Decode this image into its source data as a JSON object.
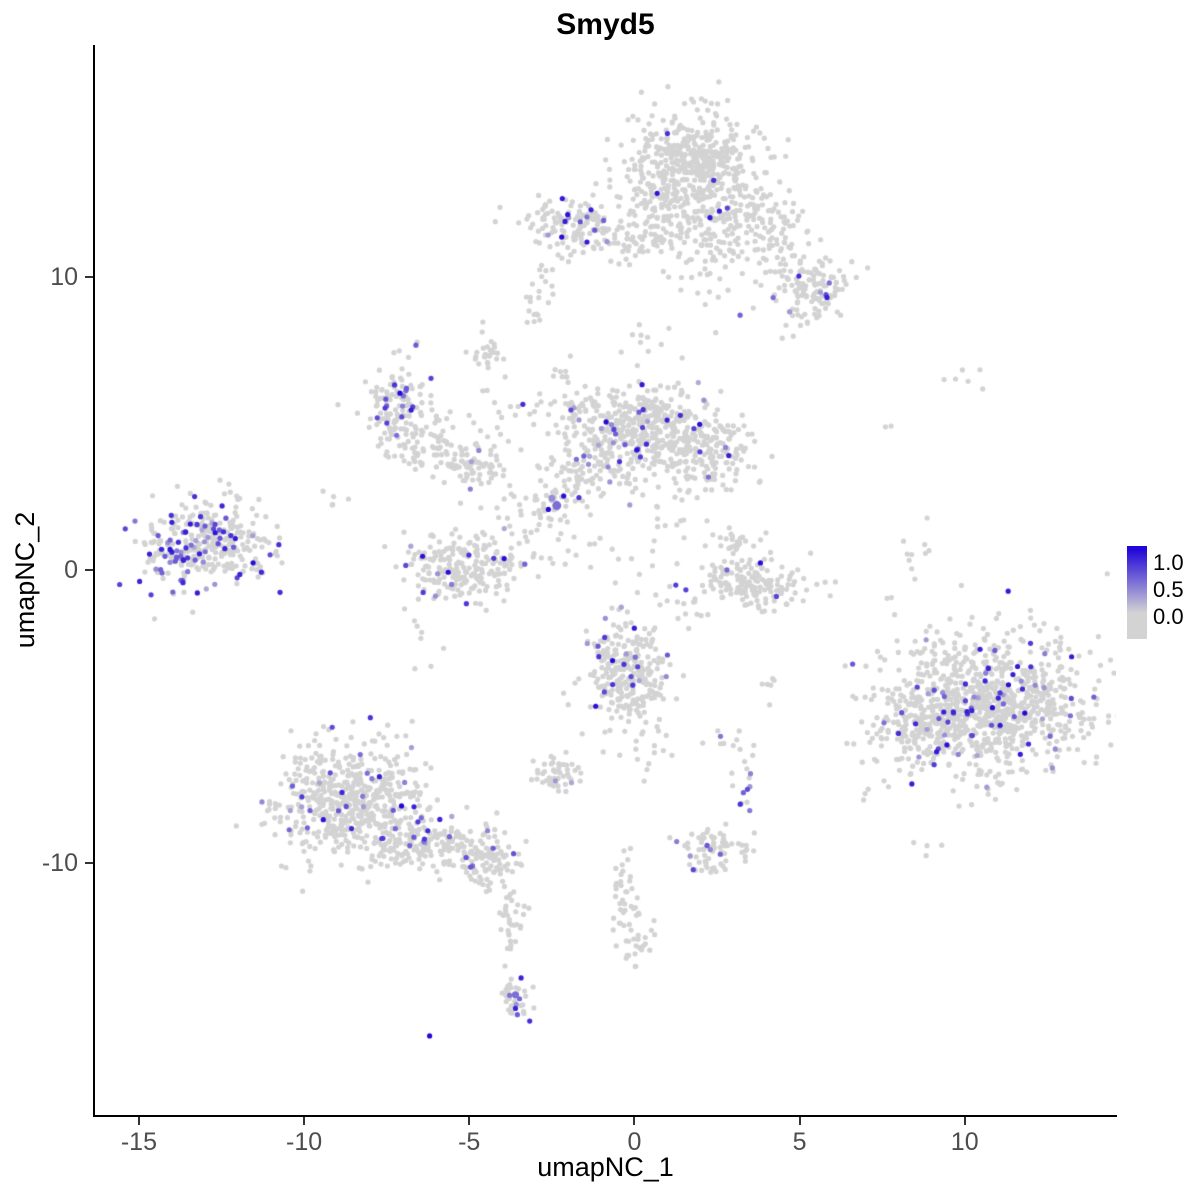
{
  "title": "Smyd5",
  "chart_data": {
    "type": "scatter",
    "title": "Smyd5",
    "xlabel": "umapNC_1",
    "ylabel": "umapNC_2",
    "x_ticks": [
      -15,
      -10,
      -5,
      0,
      5,
      10
    ],
    "y_ticks": [
      -10,
      0,
      10
    ],
    "x_range": [
      -16.33,
      14.58
    ],
    "y_range": [
      -18.6,
      17.92
    ],
    "grid": false,
    "legend": {
      "position": "right",
      "labels": [
        "1.0",
        "0.5",
        "0.0"
      ]
    },
    "colors": {
      "low": "#D3D3D3",
      "high": "#2208D8",
      "background": "#FFFFFF",
      "axis": "#000000"
    },
    "point_radius": 2.6,
    "seed": 42,
    "clusters": [
      {
        "x": 1.8,
        "y": 13.8,
        "sx": 1.0,
        "sy": 0.9,
        "n": 480,
        "expr_frac": 0.02
      },
      {
        "x": 3.4,
        "y": 11.9,
        "sx": 0.9,
        "sy": 0.7,
        "n": 150,
        "expr_frac": 0.02
      },
      {
        "x": 4.7,
        "y": 10.4,
        "sx": 0.7,
        "sy": 0.6,
        "n": 60,
        "expr_frac": 0.02
      },
      {
        "x": 5.6,
        "y": 9.6,
        "sx": 0.5,
        "sy": 0.45,
        "n": 80,
        "expr_frac": 0.05
      },
      {
        "x": 2.3,
        "y": 10.6,
        "sx": 0.5,
        "sy": 0.9,
        "n": 40,
        "expr_frac": 0.02
      },
      {
        "x": 1.0,
        "y": 12.0,
        "sx": 0.6,
        "sy": 0.8,
        "n": 80,
        "expr_frac": 0.02
      },
      {
        "x": -2.1,
        "y": 11.8,
        "sx": 0.75,
        "sy": 0.5,
        "n": 130,
        "expr_frac": 0.05
      },
      {
        "x": -0.4,
        "y": 11.4,
        "sx": 0.8,
        "sy": 0.45,
        "n": 50,
        "expr_frac": 0.02
      },
      {
        "x": 4.9,
        "y": 8.6,
        "sx": 0.3,
        "sy": 0.3,
        "n": 15,
        "expr_frac": 0.05
      },
      {
        "x": -2.9,
        "y": 8.9,
        "sx": 0.2,
        "sy": 0.3,
        "n": 12,
        "expr_frac": 0
      },
      {
        "x": -4.5,
        "y": 7.5,
        "sx": 0.3,
        "sy": 0.55,
        "n": 28,
        "expr_frac": 0
      },
      {
        "x": -7.1,
        "y": 5.5,
        "sx": 0.55,
        "sy": 0.8,
        "n": 140,
        "expr_frac": 0.13
      },
      {
        "x": -5.9,
        "y": 4.2,
        "sx": 0.6,
        "sy": 0.5,
        "n": 60,
        "expr_frac": 0.03
      },
      {
        "x": -4.8,
        "y": 3.6,
        "sx": 0.6,
        "sy": 0.5,
        "n": 70,
        "expr_frac": 0.03
      },
      {
        "x": -0.1,
        "y": 4.9,
        "sx": 1.15,
        "sy": 0.7,
        "n": 430,
        "expr_frac": 0.06
      },
      {
        "x": 2.0,
        "y": 4.1,
        "sx": 0.75,
        "sy": 0.65,
        "n": 180,
        "expr_frac": 0.05
      },
      {
        "x": -1.3,
        "y": 3.3,
        "sx": 0.8,
        "sy": 0.5,
        "n": 90,
        "expr_frac": 0.04
      },
      {
        "x": -2.4,
        "y": 2.2,
        "sx": 0.3,
        "sy": 0.3,
        "n": 25,
        "expr_frac": 0.1
      },
      {
        "x": -3.3,
        "y": 1.7,
        "sx": 0.9,
        "sy": 0.9,
        "n": 35,
        "expr_frac": 0.02
      },
      {
        "x": 1.0,
        "y": 1.7,
        "sx": 0.7,
        "sy": 0.9,
        "n": 25,
        "expr_frac": 0.02
      },
      {
        "x": 3.5,
        "y": -0.5,
        "sx": 0.85,
        "sy": 0.45,
        "n": 150,
        "expr_frac": 0.03
      },
      {
        "x": 3.1,
        "y": 0.8,
        "sx": 0.3,
        "sy": 0.4,
        "n": 30,
        "expr_frac": 0.03
      },
      {
        "x": -13.2,
        "y": 0.9,
        "sx": 0.85,
        "sy": 0.75,
        "n": 300,
        "expr_frac": 0.22
      },
      {
        "x": -11.6,
        "y": 0.6,
        "sx": 0.5,
        "sy": 0.6,
        "n": 40,
        "expr_frac": 0.05
      },
      {
        "x": -5.1,
        "y": 0.1,
        "sx": 0.95,
        "sy": 0.6,
        "n": 230,
        "expr_frac": 0.05
      },
      {
        "x": -0.2,
        "y": -3.6,
        "sx": 0.6,
        "sy": 0.95,
        "n": 280,
        "expr_frac": 0.06
      },
      {
        "x": -2.3,
        "y": -6.9,
        "sx": 0.4,
        "sy": 0.3,
        "n": 50,
        "expr_frac": 0.04
      },
      {
        "x": -8.6,
        "y": -7.9,
        "sx": 1.15,
        "sy": 1.0,
        "n": 560,
        "expr_frac": 0.05
      },
      {
        "x": -6.1,
        "y": -9.3,
        "sx": 0.85,
        "sy": 0.5,
        "n": 150,
        "expr_frac": 0.04
      },
      {
        "x": -4.4,
        "y": -9.9,
        "sx": 0.45,
        "sy": 0.5,
        "n": 90,
        "expr_frac": 0.04
      },
      {
        "x": -3.7,
        "y": -11.9,
        "sx": 0.18,
        "sy": 0.8,
        "n": 35,
        "expr_frac": 0
      },
      {
        "x": -3.6,
        "y": -14.6,
        "sx": 0.25,
        "sy": 0.4,
        "n": 35,
        "expr_frac": 0.08
      },
      {
        "x": 10.7,
        "y": -4.6,
        "sx": 1.5,
        "sy": 1.15,
        "n": 950,
        "expr_frac": 0.07
      },
      {
        "x": 8.6,
        "y": -5.6,
        "sx": 0.7,
        "sy": 0.7,
        "n": 120,
        "expr_frac": 0.08
      },
      {
        "x": 2.4,
        "y": -9.6,
        "sx": 0.5,
        "sy": 0.4,
        "n": 75,
        "expr_frac": 0.12
      },
      {
        "x": -0.3,
        "y": -11.3,
        "sx": 0.2,
        "sy": 0.8,
        "n": 40,
        "expr_frac": 0
      },
      {
        "x": 0.1,
        "y": -12.8,
        "sx": 0.3,
        "sy": 0.4,
        "n": 20,
        "expr_frac": 0
      },
      {
        "x": 2.9,
        "y": -6.2,
        "sx": 0.5,
        "sy": 0.5,
        "n": 15,
        "expr_frac": 0.05
      },
      {
        "x": 3.3,
        "y": -7.6,
        "sx": 0.3,
        "sy": 0.3,
        "n": 8,
        "expr_frac": 0.2
      },
      {
        "x": 8.5,
        "y": 0.9,
        "sx": 0.3,
        "sy": 0.5,
        "n": 10,
        "expr_frac": 0
      },
      {
        "x": 9.8,
        "y": 6.7,
        "sx": 0.5,
        "sy": 0.3,
        "n": 6,
        "expr_frac": 0
      },
      {
        "x": 7.8,
        "y": 4.9,
        "sx": 0.1,
        "sy": 0.1,
        "n": 2,
        "expr_frac": 0
      },
      {
        "x": -9.0,
        "y": 2.6,
        "sx": 0.3,
        "sy": 0.3,
        "n": 5,
        "expr_frac": 0
      },
      {
        "x": -12.0,
        "y": 2.7,
        "sx": 0.2,
        "sy": 0.2,
        "n": 4,
        "expr_frac": 0
      },
      {
        "x": -2.0,
        "y": 6.6,
        "sx": 0.4,
        "sy": 0.4,
        "n": 10,
        "expr_frac": 0
      },
      {
        "x": -3.5,
        "y": 5.3,
        "sx": 0.5,
        "sy": 0.5,
        "n": 12,
        "expr_frac": 0
      },
      {
        "x": 0.3,
        "y": 7.9,
        "sx": 0.3,
        "sy": 0.5,
        "n": 10,
        "expr_frac": 0
      },
      {
        "x": -2.7,
        "y": 9.9,
        "sx": 0.25,
        "sy": 0.45,
        "n": 10,
        "expr_frac": 0
      },
      {
        "x": 1.6,
        "y": -1.6,
        "sx": 0.5,
        "sy": 0.7,
        "n": 12,
        "expr_frac": 0
      },
      {
        "x": -1.5,
        "y": 0.6,
        "sx": 0.6,
        "sy": 0.6,
        "n": 14,
        "expr_frac": 0
      },
      {
        "x": 0.5,
        "y": -6.3,
        "sx": 0.4,
        "sy": 0.4,
        "n": 8,
        "expr_frac": 0
      },
      {
        "x": -6.5,
        "y": -2.5,
        "sx": 0.4,
        "sy": 0.8,
        "n": 8,
        "expr_frac": 0
      },
      {
        "x": 4.2,
        "y": -4.1,
        "sx": 0.3,
        "sy": 0.3,
        "n": 6,
        "expr_frac": 0
      },
      {
        "x": 8.9,
        "y": -9.3,
        "sx": 0.3,
        "sy": 0.3,
        "n": 4,
        "expr_frac": 0
      },
      {
        "x": 6.8,
        "y": -7.8,
        "sx": 0.2,
        "sy": 0.2,
        "n": 3,
        "expr_frac": 0
      }
    ],
    "highlight_points": [
      {
        "x": -6.2,
        "y": -15.9,
        "t": 1.0
      },
      {
        "x": -7.05,
        "y": -8.05,
        "t": 1.0
      },
      {
        "x": -2.35,
        "y": 2.2,
        "t": 0.5,
        "r": 4.5
      },
      {
        "x": -2.5,
        "y": 2.45,
        "t": 0.35,
        "r": 3.4
      },
      {
        "x": 4.3,
        "y": -0.9,
        "t": 0.7
      },
      {
        "x": 5.8,
        "y": 9.4,
        "t": 0.65
      },
      {
        "x": 5.9,
        "y": 9.8,
        "t": 0.5
      },
      {
        "x": 1.0,
        "y": 14.9,
        "t": 0.8
      },
      {
        "x": 2.4,
        "y": 13.3,
        "t": 0.8
      },
      {
        "x": -2.1,
        "y": 11.9,
        "t": 0.9
      },
      {
        "x": -1.2,
        "y": 11.6,
        "t": 0.6
      },
      {
        "x": 3.2,
        "y": 8.7,
        "t": 0.55
      },
      {
        "x": -3.6,
        "y": -14.5,
        "t": 0.5,
        "r": 3.6
      },
      {
        "x": 3.3,
        "y": -7.6,
        "t": 0.55
      },
      {
        "x": -0.9,
        "y": -2.3,
        "t": 0.75
      },
      {
        "x": -1.1,
        "y": -2.6,
        "t": 0.6
      },
      {
        "x": 0.1,
        "y": -3.3,
        "t": 0.7
      },
      {
        "x": -6.9,
        "y": 6.2,
        "t": 0.6
      },
      {
        "x": -7.5,
        "y": 5.6,
        "t": 0.55
      },
      {
        "x": -7.2,
        "y": 4.6,
        "t": 0.5
      },
      {
        "x": -13.6,
        "y": 1.3,
        "t": 0.7
      },
      {
        "x": -13.0,
        "y": 1.5,
        "t": 0.6
      },
      {
        "x": -12.6,
        "y": 0.9,
        "t": 0.65
      },
      {
        "x": -13.9,
        "y": 0.3,
        "t": 0.6
      },
      {
        "x": -14.3,
        "y": -0.1,
        "t": 0.55
      },
      {
        "x": 12.0,
        "y": -3.3,
        "t": 0.8
      },
      {
        "x": 11.5,
        "y": -5.0,
        "t": 0.6
      },
      {
        "x": 9.2,
        "y": -6.1,
        "t": 0.7
      },
      {
        "x": 8.4,
        "y": -7.3,
        "t": 0.9
      },
      {
        "x": 1.0,
        "y": -2.9,
        "t": 0.6
      },
      {
        "x": 2.2,
        "y": -9.4,
        "t": 0.6
      },
      {
        "x": 2.6,
        "y": -9.7,
        "t": 0.55
      },
      {
        "x": -7.3,
        "y": -8.2,
        "t": 0.6
      },
      {
        "x": -9.9,
        "y": -8.8,
        "t": 0.55
      },
      {
        "x": -8.3,
        "y": -6.3,
        "t": 0.5
      },
      {
        "x": -5.6,
        "y": -9.1,
        "t": 0.55
      },
      {
        "x": -4.9,
        "y": -10.1,
        "t": 0.5
      },
      {
        "x": 4.2,
        "y": 9.3,
        "t": 0.5
      }
    ]
  }
}
